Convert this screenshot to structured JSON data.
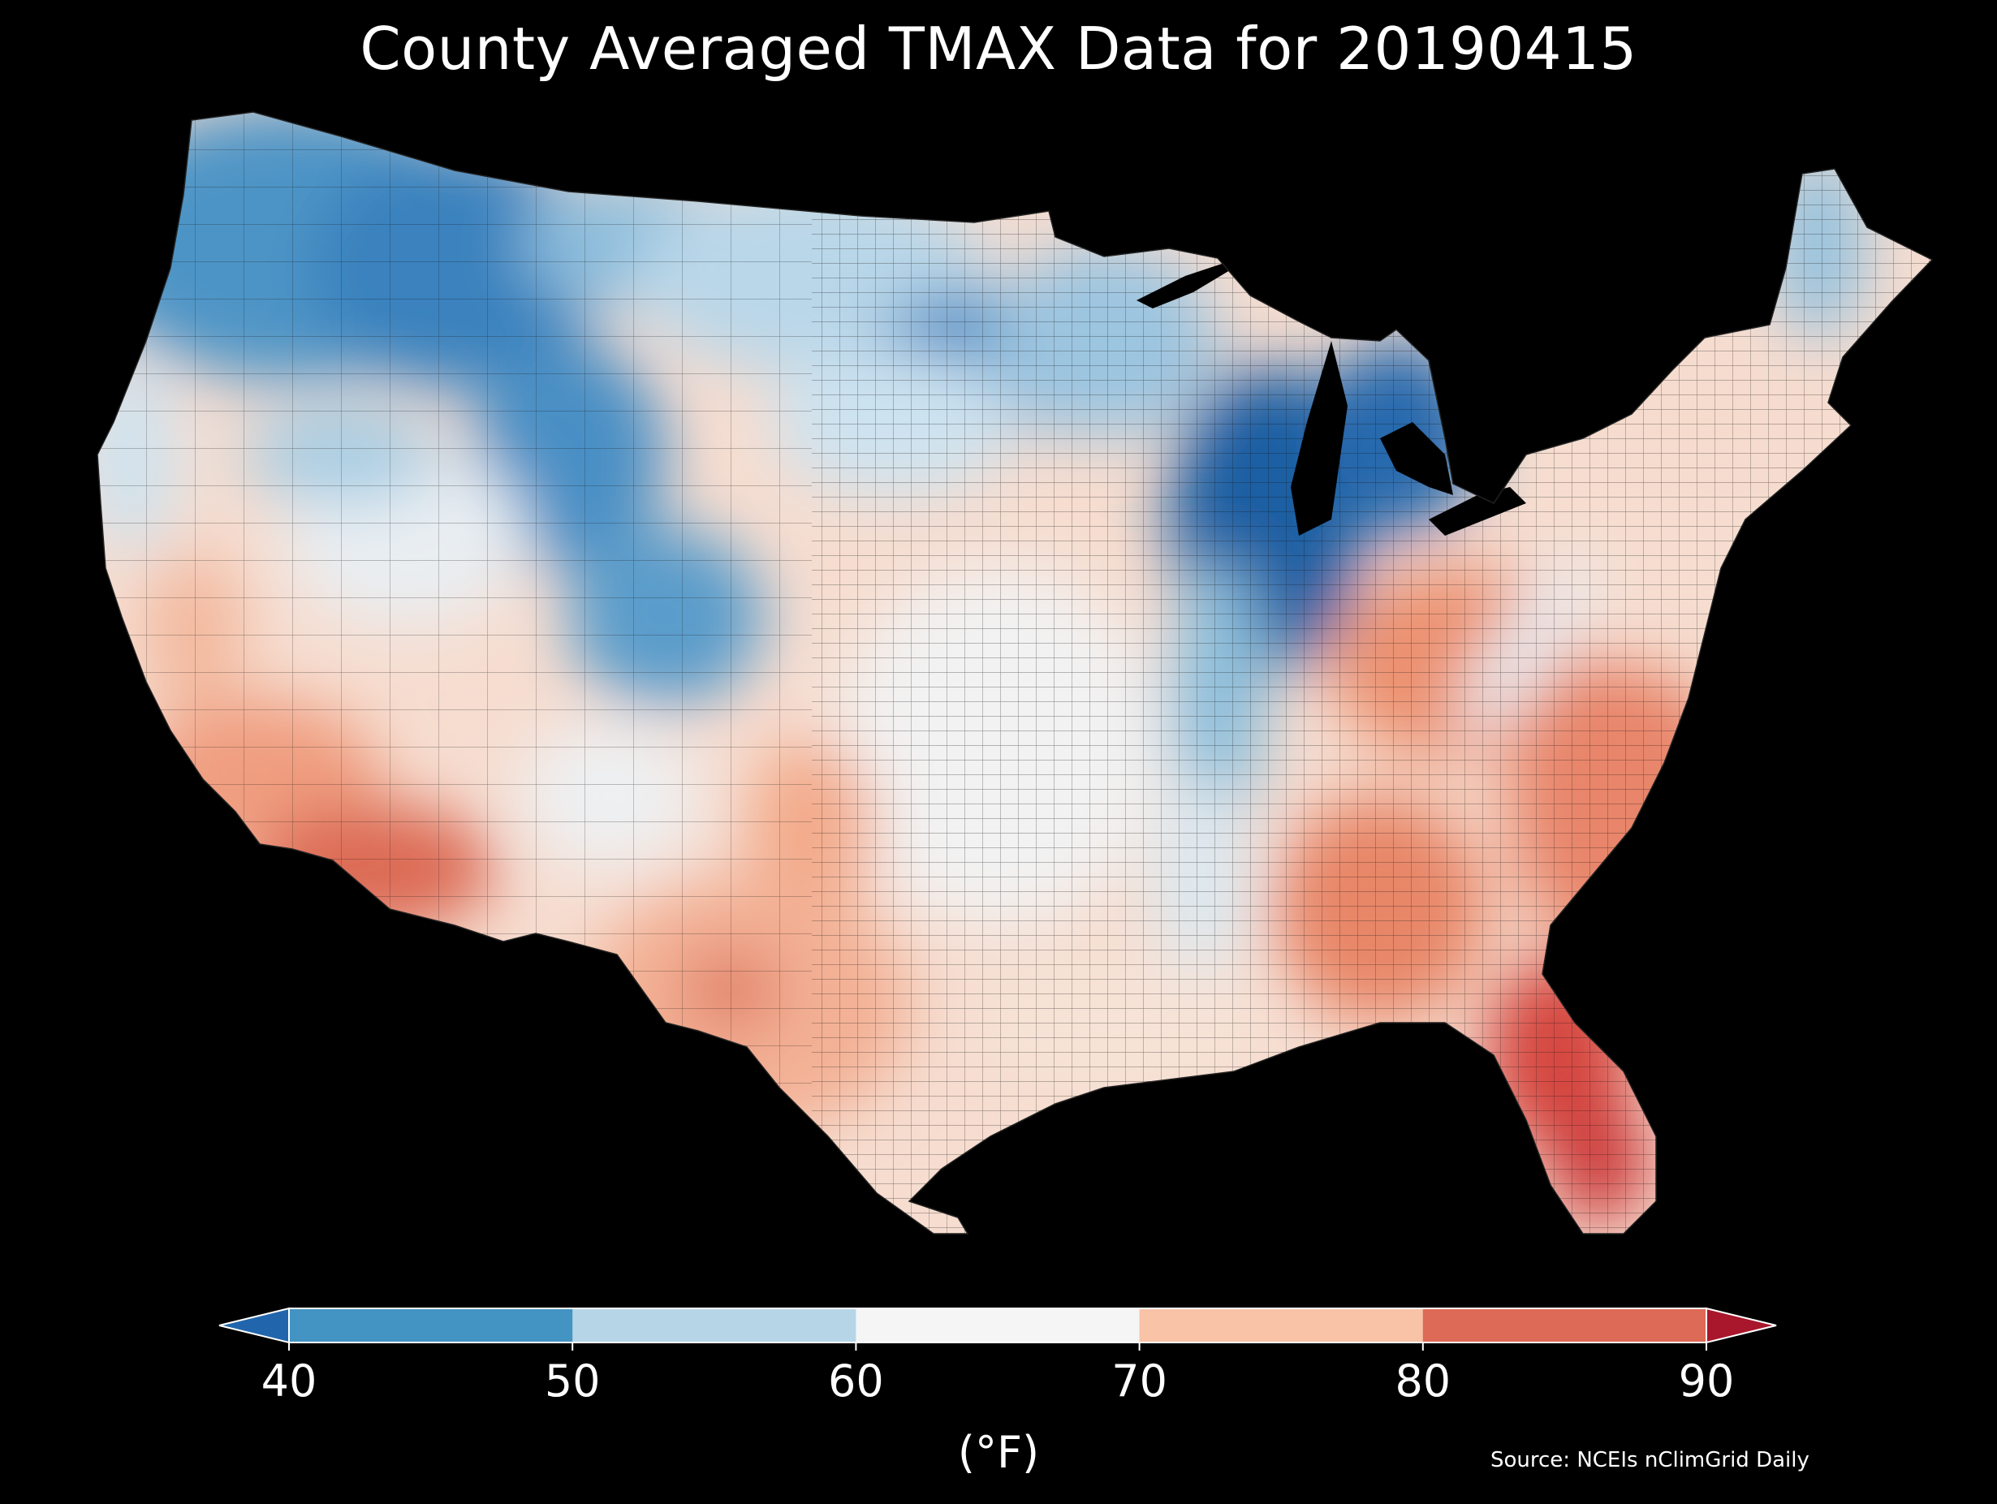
{
  "title": "County Averaged TMAX Data for 20190415",
  "source": "Source: NCEIs nClimGrid Daily",
  "colorbar": {
    "unit_label": "(°F)",
    "ticks": [
      "40",
      "50",
      "60",
      "70",
      "80",
      "90"
    ],
    "bins": [
      {
        "range": "<40",
        "color": "#2166ac"
      },
      {
        "range": "40-50",
        "color": "#4393c3"
      },
      {
        "range": "50-60",
        "color": "#b6d6e8"
      },
      {
        "range": "60-70",
        "color": "#f5f5f5"
      },
      {
        "range": "70-80",
        "color": "#f8c3a7"
      },
      {
        "range": "80-90",
        "color": "#dd6a56"
      },
      {
        "range": ">90",
        "color": "#a8172b"
      }
    ]
  },
  "map": {
    "region": "Contiguous United States",
    "variable": "TMAX",
    "date": "20190415",
    "background": "#000000",
    "county_outline_color": "#1a1a1a",
    "colormap": "RdBu_r",
    "value_range_F": [
      40,
      90
    ]
  }
}
